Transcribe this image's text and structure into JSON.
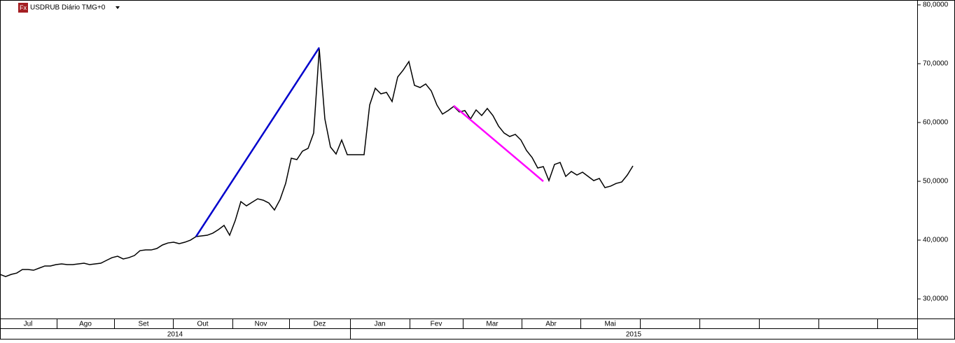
{
  "chart_data": {
    "type": "line",
    "title": "USDRUB Diário TMG+0",
    "icon": "Fx",
    "months": [
      "Jul",
      "Ago",
      "Set",
      "Out",
      "Nov",
      "Dez",
      "Jan",
      "Fev",
      "Mar",
      "Abr",
      "Mai"
    ],
    "years": [
      "2014",
      "2015"
    ],
    "ylim": [
      26.67,
      80.83
    ],
    "yticks": [
      {
        "value": 30,
        "label": "30,0000"
      },
      {
        "value": 40,
        "label": "40,0000"
      },
      {
        "value": 50,
        "label": "50,0000"
      },
      {
        "value": 60,
        "label": "60,0000"
      },
      {
        "value": 70,
        "label": "70,0000"
      },
      {
        "value": 80,
        "label": "80,0000"
      }
    ],
    "series": [
      {
        "color": "#000000",
        "values": [
          34.17,
          33.81,
          34.17,
          34.4,
          35.0,
          35.0,
          34.88,
          35.24,
          35.6,
          35.6,
          35.83,
          35.95,
          35.83,
          35.83,
          35.95,
          36.07,
          35.83,
          35.95,
          36.07,
          36.55,
          37.02,
          37.26,
          36.79,
          37.02,
          37.38,
          38.21,
          38.33,
          38.33,
          38.57,
          39.17,
          39.52,
          39.64,
          39.4,
          39.64,
          40.0,
          40.6,
          40.71,
          40.83,
          41.19,
          41.79,
          42.5,
          40.83,
          43.33,
          46.55,
          45.83,
          46.43,
          47.02,
          46.79,
          46.31,
          45.12,
          46.9,
          49.64,
          53.93,
          53.69,
          55.12,
          55.6,
          58.21,
          72.5,
          60.6,
          55.83,
          54.64,
          57.02,
          54.52,
          54.52,
          54.52,
          54.52,
          62.98,
          65.83,
          64.88,
          65.12,
          63.57,
          67.74,
          68.93,
          70.36,
          66.31,
          65.95,
          66.55,
          65.36,
          62.98,
          61.43,
          62.02,
          62.74,
          61.79,
          62.02,
          60.6,
          62.14,
          61.19,
          62.38,
          61.19,
          59.4,
          58.21,
          57.62,
          57.98,
          57.02,
          55.24,
          54.05,
          52.26,
          52.5,
          50.12,
          52.86,
          53.21,
          50.83,
          51.67,
          51.07,
          51.55,
          50.83,
          50.12,
          50.48,
          48.93,
          49.17,
          49.64,
          49.88,
          51.07,
          52.62
        ]
      }
    ],
    "trendlines": [
      {
        "color": "#0000cc",
        "x": [
          35,
          57
        ],
        "values": [
          40.6,
          72.74
        ]
      },
      {
        "color": "#ff00ff",
        "x": [
          81,
          97
        ],
        "values": [
          62.86,
          50.0
        ]
      }
    ]
  }
}
